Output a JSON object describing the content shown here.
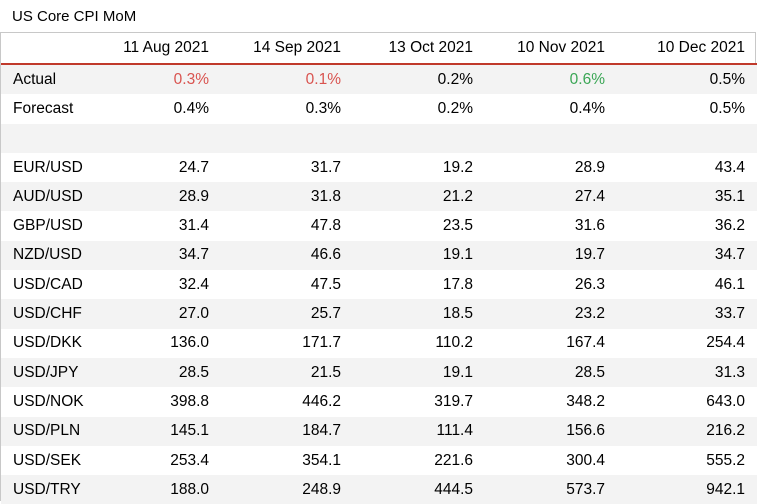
{
  "title": "US Core CPI MoM",
  "colors": {
    "negative": "#d9534f",
    "positive": "#3aa655",
    "header_rule": "#c0392b"
  },
  "columns": [
    "11 Aug 2021",
    "14 Sep 2021",
    "13 Oct 2021",
    "10 Nov 2021",
    "10 Dec 2021"
  ],
  "actual": {
    "label": "Actual",
    "values": [
      "0.3%",
      "0.1%",
      "0.2%",
      "0.6%",
      "0.5%"
    ],
    "tone": [
      "red",
      "red",
      "",
      "green",
      ""
    ]
  },
  "forecast": {
    "label": "Forecast",
    "values": [
      "0.4%",
      "0.3%",
      "0.2%",
      "0.4%",
      "0.5%"
    ]
  },
  "pairs": [
    {
      "label": "EUR/USD",
      "values": [
        "24.7",
        "31.7",
        "19.2",
        "28.9",
        "43.4"
      ]
    },
    {
      "label": "AUD/USD",
      "values": [
        "28.9",
        "31.8",
        "21.2",
        "27.4",
        "35.1"
      ]
    },
    {
      "label": "GBP/USD",
      "values": [
        "31.4",
        "47.8",
        "23.5",
        "31.6",
        "36.2"
      ]
    },
    {
      "label": "NZD/USD",
      "values": [
        "34.7",
        "46.6",
        "19.1",
        "19.7",
        "34.7"
      ]
    },
    {
      "label": "USD/CAD",
      "values": [
        "32.4",
        "47.5",
        "17.8",
        "26.3",
        "46.1"
      ]
    },
    {
      "label": "USD/CHF",
      "values": [
        "27.0",
        "25.7",
        "18.5",
        "23.2",
        "33.7"
      ]
    },
    {
      "label": "USD/DKK",
      "values": [
        "136.0",
        "171.7",
        "110.2",
        "167.4",
        "254.4"
      ]
    },
    {
      "label": "USD/JPY",
      "values": [
        "28.5",
        "21.5",
        "19.1",
        "28.5",
        "31.3"
      ]
    },
    {
      "label": "USD/NOK",
      "values": [
        "398.8",
        "446.2",
        "319.7",
        "348.2",
        "643.0"
      ]
    },
    {
      "label": "USD/PLN",
      "values": [
        "145.1",
        "184.7",
        "111.4",
        "156.6",
        "216.2"
      ]
    },
    {
      "label": "USD/SEK",
      "values": [
        "253.4",
        "354.1",
        "221.6",
        "300.4",
        "555.2"
      ]
    },
    {
      "label": "USD/TRY",
      "values": [
        "188.0",
        "248.9",
        "444.5",
        "573.7",
        "942.1"
      ]
    }
  ]
}
